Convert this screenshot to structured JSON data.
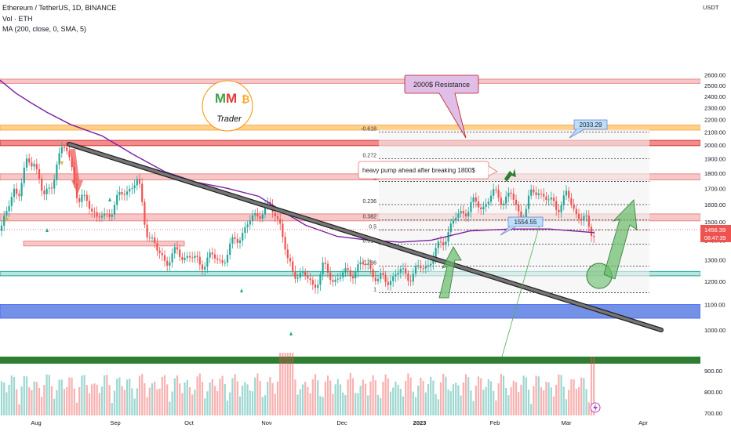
{
  "header": {
    "symbol": "Ethereum / TetherUS, 1D, BINANCE",
    "volume": "Vol · ETH",
    "ma": "MA (200, close, 0, SMA, 5)"
  },
  "price_axis": {
    "unit": "USDT",
    "ticks": [
      "2600.00",
      "2500.00",
      "2400.00",
      "2300.00",
      "2200.00",
      "2100.00",
      "2000.00",
      "1900.00",
      "1800.00",
      "1700.00",
      "1600.00",
      "1500.00",
      "1400.00",
      "1300.00",
      "1200.00",
      "1100.00",
      "1000.00",
      "900.00",
      "800.00",
      "700.00"
    ],
    "last_price": "1456.39",
    "countdown": "08:47:39"
  },
  "time_axis": {
    "labels": [
      "Aug",
      "Sep",
      "Oct",
      "Nov",
      "Dec",
      "2023",
      "Feb",
      "Mar",
      "Apr"
    ]
  },
  "logo": {
    "top": "MM",
    "coin": "₿",
    "bottom": "Trader"
  },
  "annotations": {
    "resistance_callout": "2000$ Resistance",
    "pump_note": "heavy pump ahead after breaking 1800$",
    "price_tag_low": "1554.55",
    "price_tag_high": "2033.29"
  },
  "fib_levels": [
    "-0.618",
    "0.272",
    "0",
    "0.236",
    "0.382",
    "0.5",
    "0.618",
    "0.786",
    "1"
  ],
  "colors": {
    "up": "#26a69a",
    "down": "#ef5350",
    "ma": "#7b1fa2",
    "zone_red": "#f7c7c7",
    "zone_orange": "#ffd08a",
    "zone_teal": "#b8e6de",
    "zone_blue": "#5c7fe0",
    "zone_green": "#2e7d32"
  },
  "chart_data": {
    "type": "candlestick",
    "title": "Ethereum / TetherUS, 1D, BINANCE",
    "ylabel": "USDT",
    "ylim": [
      700,
      2650
    ],
    "log_scale": true,
    "grid": false,
    "x": [
      "Aug",
      "Sep",
      "Oct",
      "Nov",
      "Dec",
      "2023",
      "Feb",
      "Mar",
      "Apr"
    ],
    "series": [
      {
        "name": "Vol · ETH",
        "kind": "volume histogram"
      },
      {
        "name": "MA (200, close, 0, SMA, 5)",
        "kind": "line"
      }
    ],
    "price_levels": [
      {
        "label": "2000$ Resistance",
        "value": 2000
      },
      {
        "label": "last",
        "value": 1456.39
      },
      {
        "label": "tag",
        "value": 1554.55
      },
      {
        "label": "tag",
        "value": 2033.29
      }
    ]
  }
}
